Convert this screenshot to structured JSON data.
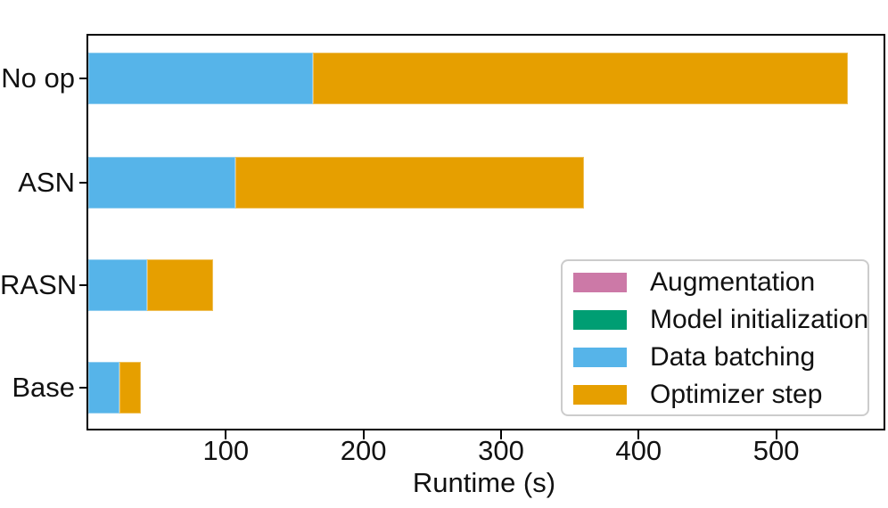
{
  "chart_data": {
    "type": "bar",
    "orientation": "horizontal",
    "stacked": true,
    "title": "",
    "xlabel": "Runtime (s)",
    "ylabel": "",
    "categories": [
      "No op",
      "ASN",
      "RASN",
      "Base"
    ],
    "series": [
      {
        "name": "Augmentation",
        "color": "#CC79A7",
        "values": [
          0,
          0,
          0,
          0
        ]
      },
      {
        "name": "Model initialization",
        "color": "#009E73",
        "values": [
          0,
          0,
          0,
          0
        ]
      },
      {
        "name": "Data batching",
        "color": "#56B4E9",
        "values": [
          163,
          107,
          43,
          23
        ]
      },
      {
        "name": "Optimizer step",
        "color": "#E69F00",
        "values": [
          389,
          253,
          48,
          15
        ]
      }
    ],
    "totals": [
      552,
      360,
      91,
      38
    ],
    "xlim": [
      0,
      578
    ],
    "xticks": [
      100,
      200,
      300,
      400,
      500
    ],
    "grid": false,
    "legend_position": "lower right",
    "text_color": "#111111",
    "spine_color": "#000000",
    "background_color": "#ffffff"
  }
}
